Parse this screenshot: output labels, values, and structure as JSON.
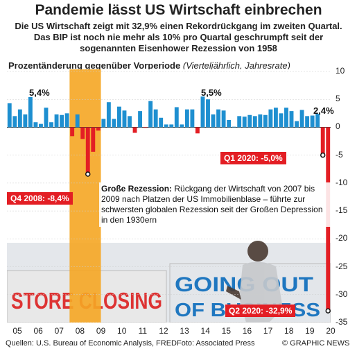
{
  "title": "Pandemie lässt US Wirtschaft einbrechen",
  "subtitle_lines": [
    "Die US Wirtschaft zeigt mit 32,9% einen Rekordrückgang im zweiten Quartal.",
    "Das BIP ist noch nie mehr als 10% pro Quartal geschrumpft seit der",
    "sogenannten Eisenhower Rezession von 1958"
  ],
  "chart_data": {
    "type": "bar",
    "ylabel": "Prozentänderung gegenüber Vorperiode",
    "ylabel_note": "(Vierteljährlich, Jahresrate)",
    "ylim": [
      -35,
      10
    ],
    "yticks": [
      10,
      5,
      0,
      -5,
      -10,
      -15,
      -20,
      -25,
      -30,
      -35
    ],
    "xtick_labels": [
      "05",
      "06",
      "07",
      "08",
      "09",
      "10",
      "11",
      "12",
      "13",
      "14",
      "15",
      "16",
      "17",
      "18",
      "19",
      "20"
    ],
    "x": [
      "2005 Q1",
      "2005 Q2",
      "2005 Q3",
      "2005 Q4",
      "2006 Q1",
      "2006 Q2",
      "2006 Q3",
      "2006 Q4",
      "2007 Q1",
      "2007 Q2",
      "2007 Q3",
      "2007 Q4",
      "2008 Q1",
      "2008 Q2",
      "2008 Q3",
      "2008 Q4",
      "2009 Q1",
      "2009 Q2",
      "2009 Q3",
      "2009 Q4",
      "2010 Q1",
      "2010 Q2",
      "2010 Q3",
      "2010 Q4",
      "2011 Q1",
      "2011 Q2",
      "2011 Q3",
      "2011 Q4",
      "2012 Q1",
      "2012 Q2",
      "2012 Q3",
      "2012 Q4",
      "2013 Q1",
      "2013 Q2",
      "2013 Q3",
      "2013 Q4",
      "2014 Q1",
      "2014 Q2",
      "2014 Q3",
      "2014 Q4",
      "2015 Q1",
      "2015 Q2",
      "2015 Q3",
      "2015 Q4",
      "2016 Q1",
      "2016 Q2",
      "2016 Q3",
      "2016 Q4",
      "2017 Q1",
      "2017 Q2",
      "2017 Q3",
      "2017 Q4",
      "2018 Q1",
      "2018 Q2",
      "2018 Q3",
      "2018 Q4",
      "2019 Q1",
      "2019 Q2",
      "2019 Q3",
      "2019 Q4",
      "2020 Q1",
      "2020 Q2"
    ],
    "values": [
      4.3,
      2.0,
      3.2,
      2.3,
      5.4,
      0.9,
      0.6,
      3.5,
      0.9,
      2.3,
      2.2,
      2.5,
      -1.6,
      2.3,
      -2.1,
      -8.4,
      -4.4,
      -0.6,
      1.5,
      4.5,
      1.5,
      3.7,
      3.0,
      2.0,
      -1.0,
      2.9,
      -0.1,
      4.7,
      3.2,
      1.7,
      0.5,
      0.5,
      3.6,
      0.5,
      3.2,
      3.2,
      -1.1,
      5.5,
      5.0,
      2.3,
      3.2,
      3.0,
      1.3,
      0.1,
      2.0,
      1.9,
      2.2,
      2.0,
      2.3,
      2.2,
      3.2,
      3.5,
      2.5,
      3.5,
      2.9,
      1.1,
      3.1,
      2.0,
      2.1,
      2.4,
      -5.0,
      -32.9
    ],
    "peak_labels": {
      "p2006": "5,4%",
      "p2014": "5,5%",
      "p2019": "2,4%"
    },
    "colors": {
      "positive": "#1e8fd0",
      "negative": "#e31e24",
      "recession": "#f5a623"
    },
    "recession_band": [
      "2008 Q1",
      "2009 Q2"
    ],
    "callouts": {
      "q4_2008": "Q4 2008: -8,4%",
      "q1_2020": "Q1 2020: -5,0%",
      "q2_2020": "Q2 2020: -32,9%"
    }
  },
  "annotation": {
    "heading": "Große Rezession:",
    "text": " Rückgang der Wirtschaft von 2007 bis 2009 nach Platzen der US Immobilienblase – führte zur schwersten globalen Rezession seit der Großen Depression in den 1930ern"
  },
  "photo_signs": {
    "sign_left": "STORE CLOSING",
    "sign_right_line1": "GOING OUT",
    "sign_right_line2": "OF BUSINESS"
  },
  "footer": {
    "source": "Quellen: U.S. Bureau of Economic Analysis, FRED",
    "credit": "Foto: Associated Press",
    "brand": "© GRAPHIC NEWS"
  }
}
